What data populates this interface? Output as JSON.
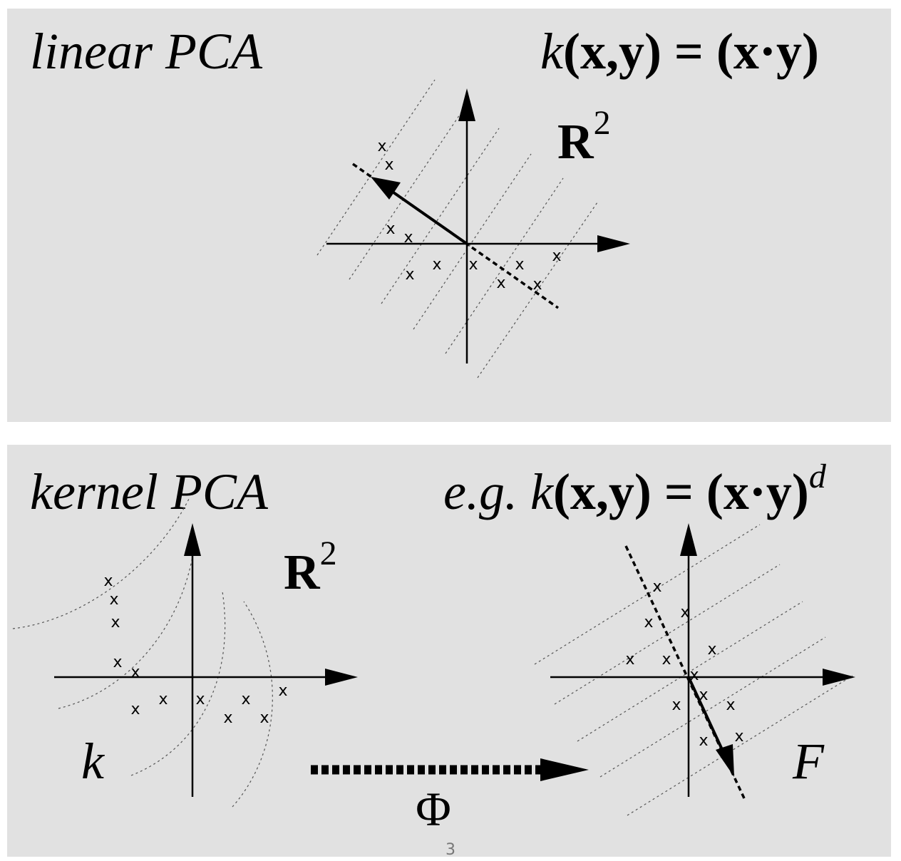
{
  "top_panel": {
    "title": "linear PCA",
    "kernel_k": "k",
    "kernel_formula": "(x,y) = (x·y)",
    "space_label": "R",
    "space_exp": "2",
    "point_marker": "x"
  },
  "bottom_panel": {
    "title": "kernel PCA",
    "kernel_prefix": "e.g.",
    "kernel_k": "k",
    "kernel_formula": "(x,y) = (x·y)",
    "kernel_exp": "d",
    "space_label": "R",
    "space_exp": "2",
    "input_kernel_label": "k",
    "feature_space_label": "F",
    "map_label": "Φ",
    "point_marker": "x"
  },
  "page_number": "3"
}
